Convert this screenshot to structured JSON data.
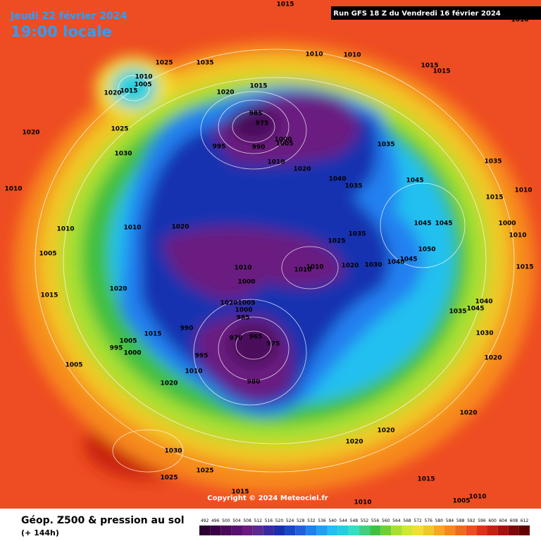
{
  "header": {
    "date": "Jeudi 22 février 2024",
    "time": "19:00 locale",
    "run": "Run GFS 18 Z du Vendredi 16 février 2024"
  },
  "copyright": "Copyright © 2024 Meteociel.fr",
  "footer": {
    "title": "Géop. Z500 & pression au sol",
    "subtitle": "(+ 144h)"
  },
  "legend": {
    "ticks": [
      492,
      496,
      500,
      504,
      508,
      512,
      516,
      520,
      524,
      528,
      532,
      536,
      540,
      544,
      548,
      552,
      556,
      560,
      564,
      568,
      572,
      576,
      580,
      584,
      588,
      592,
      596,
      600,
      604,
      608,
      612
    ],
    "colors": [
      "#2a0030",
      "#3a0048",
      "#4a0a5a",
      "#5a1070",
      "#6a1a80",
      "#5a2a90",
      "#3a2aa0",
      "#1830b0",
      "#1848c8",
      "#2060e0",
      "#2080f0",
      "#20a0f0",
      "#20c0f0",
      "#20d0e0",
      "#30e0c0",
      "#40d080",
      "#40c040",
      "#70d030",
      "#a8e030",
      "#d0e830",
      "#f0e030",
      "#f0c828",
      "#f5a820",
      "#f7891c",
      "#f06a1c",
      "#ee4c22",
      "#e03018",
      "#c82010",
      "#a81010",
      "#800808",
      "#600000"
    ]
  },
  "isobar_labels": [
    "1015",
    "1025",
    "1035",
    "1010",
    "1005",
    "1015",
    "1020",
    "1010",
    "1010",
    "1015",
    "1015",
    "1020",
    "1015",
    "1020",
    "1025",
    "985",
    "975",
    "995",
    "990",
    "1000",
    "1005",
    "1010",
    "1020",
    "1035",
    "1040",
    "1035",
    "1045",
    "1035",
    "1010",
    "1030",
    "1015",
    "1010",
    "1010",
    "1010",
    "1020",
    "1045",
    "1045",
    "1035",
    "1025",
    "1000",
    "1010",
    "1050",
    "1005",
    "1010",
    "1010",
    "1010",
    "1020",
    "1030",
    "1045",
    "1040",
    "1015",
    "1000",
    "1020",
    "1015",
    "1005",
    "1020",
    "1000",
    "985",
    "990",
    "1015",
    "970",
    "965",
    "975",
    "1005",
    "995",
    "1000",
    "995",
    "1040",
    "1045",
    "1035",
    "1030",
    "1020",
    "1005",
    "1010",
    "980",
    "1020",
    "1020",
    "1020",
    "1020",
    "1030",
    "1025",
    "1025",
    "1015",
    "1015",
    "1010",
    "1005",
    "1010",
    "1010"
  ]
}
